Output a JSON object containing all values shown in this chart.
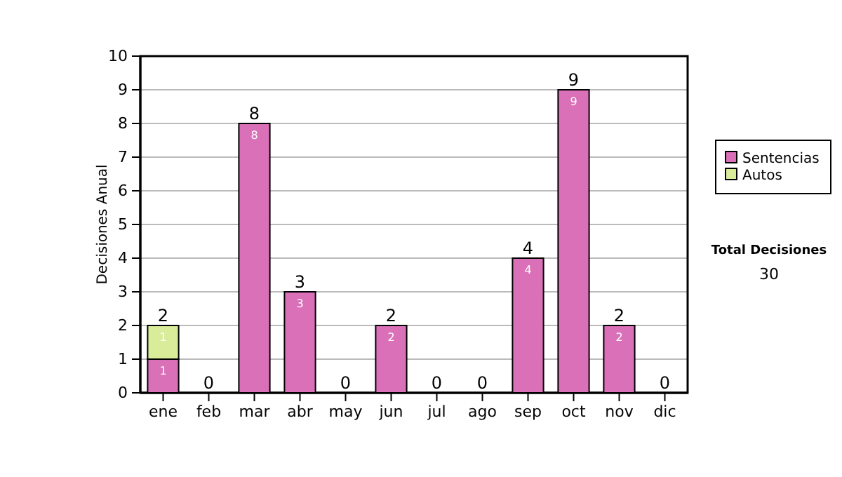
{
  "chart_data": {
    "type": "bar",
    "stacked": true,
    "ylabel": "Decisiones Anual",
    "categories": [
      "ene",
      "feb",
      "mar",
      "abr",
      "may",
      "jun",
      "jul",
      "ago",
      "sep",
      "oct",
      "nov",
      "dic"
    ],
    "series": [
      {
        "name": "Sentencias",
        "color": "#da70b8",
        "values": [
          1,
          0,
          8,
          3,
          0,
          2,
          0,
          0,
          4,
          9,
          2,
          0
        ],
        "value_labels": [
          "1",
          null,
          "8",
          "3",
          null,
          "2",
          null,
          null,
          "4",
          "9",
          "2",
          null
        ]
      },
      {
        "name": "Autos",
        "color": "#d9ec9a",
        "values": [
          1,
          0,
          0,
          0,
          0,
          0,
          0,
          0,
          0,
          0,
          0,
          0
        ],
        "value_labels": [
          "1",
          null,
          null,
          null,
          null,
          null,
          null,
          null,
          null,
          null,
          null,
          null
        ]
      }
    ],
    "totals": [
      "2",
      "0",
      "8",
      "3",
      "0",
      "2",
      "0",
      "0",
      "4",
      "9",
      "2",
      "0"
    ],
    "ylim": [
      0,
      10
    ],
    "yticks": [
      0,
      1,
      2,
      3,
      4,
      5,
      6,
      7,
      8,
      9,
      10
    ],
    "grid": "y",
    "legend": "right",
    "annotations": [
      "Total Decisiones",
      "30"
    ]
  }
}
